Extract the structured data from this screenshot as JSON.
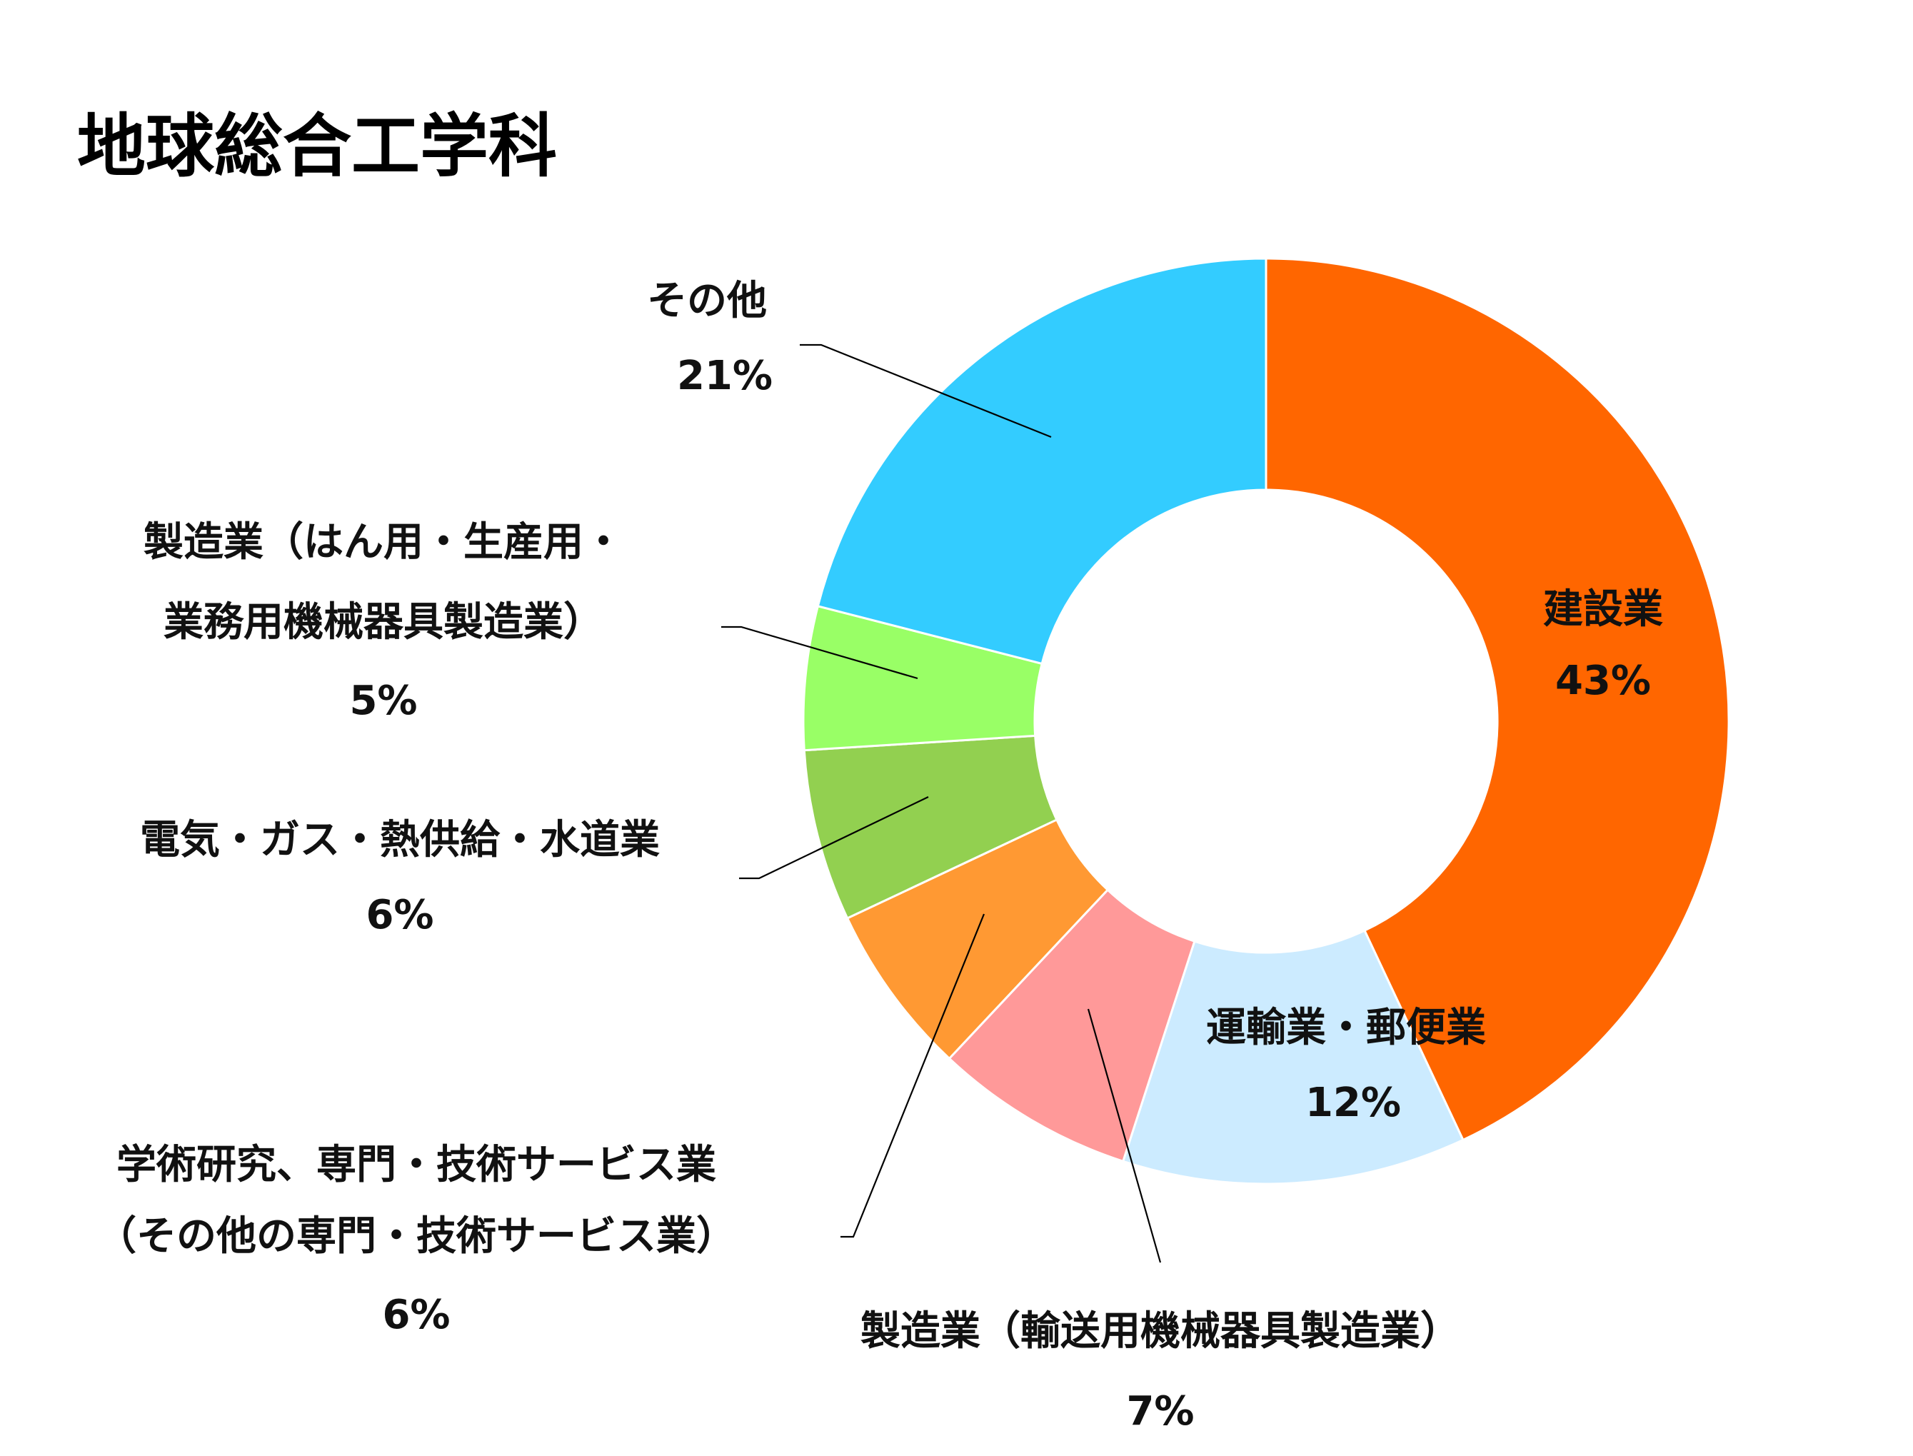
{
  "chart_data": {
    "type": "pie",
    "donut": true,
    "title": "地球総合工学科",
    "slices": [
      {
        "label": [
          "建設業"
        ],
        "value": 43,
        "value_label": "43%",
        "color": "#FF6600"
      },
      {
        "label": [
          "運輸業・郵便業"
        ],
        "value": 12,
        "value_label": "12%",
        "color": "#CCEBFF"
      },
      {
        "label": [
          "製造業（輸送用機械器具製造業）"
        ],
        "value": 7,
        "value_label": "7%",
        "color": "#FF9999"
      },
      {
        "label": [
          "学術研究、専門・技術サービス業",
          "（その他の専門・技術サービス業）"
        ],
        "value": 6,
        "value_label": "6%",
        "color": "#FF9933"
      },
      {
        "label": [
          "電気・ガス・熱供給・水道業"
        ],
        "value": 6,
        "value_label": "6%",
        "color": "#92D050"
      },
      {
        "label": [
          "製造業（はん用・生産用・",
          "業務用機械器具製造業）"
        ],
        "value": 5,
        "value_label": "5%",
        "color": "#99FF66"
      },
      {
        "label": [
          "その他"
        ],
        "value": 21,
        "value_label": "21%",
        "color": "#33CCFF"
      }
    ]
  }
}
